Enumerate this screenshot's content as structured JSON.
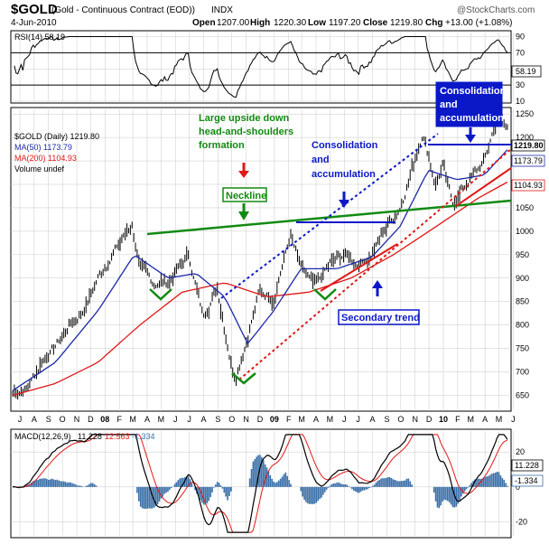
{
  "header": {
    "symbol": "$GOLD",
    "description": "(Gold - Continuous Contract (EOD))",
    "exchange": "INDX",
    "watermark": "@StockCharts.com",
    "date": "4-Jun-2010",
    "open_label": "Open",
    "open_value": "1207.00",
    "high_label": "High",
    "high_value": "1220.30",
    "low_label": "Low",
    "low_value": "1197.20",
    "close_label": "Close",
    "close_value": "1219.80",
    "chg_label": "Chg",
    "chg_value": "+13.00 (+1.08%)"
  },
  "colors": {
    "price_bars": "#000000",
    "ma50": "#1c2aa8",
    "ma200": "#e01818",
    "rsi": "#000000",
    "macd": "#000000",
    "macd_signal": "#e01818",
    "histogram": "#3a6fa8",
    "annotation_green": "#128a12",
    "annotation_blue": "#0a18c8",
    "trend_red": "#e01818",
    "grid": "#c8c8c8"
  },
  "chart_data": [
    {
      "type": "line",
      "panel": "rsi",
      "legend_label": "RSI(14) 58.19",
      "current_value_label": "58.19",
      "ylim": [
        10,
        95
      ],
      "y_ticks": [
        "90",
        "70",
        "50",
        "30",
        "10"
      ],
      "reference_lines": [
        70,
        30
      ],
      "grid": true
    },
    {
      "type": "line",
      "panel": "price",
      "legend": {
        "price": "$GOLD (Daily) 1219.80",
        "ma50": "MA(50) 1173.79",
        "ma200": "MA(200) 1104.93",
        "volume": "Volume undef"
      },
      "last_value_labels": [
        "1219.80",
        "1173.79",
        "1104.93"
      ],
      "ylim": [
        620,
        1260
      ],
      "y_ticks": [
        "1250",
        "1200",
        "1150",
        "1100",
        "1050",
        "1000",
        "950",
        "900",
        "850",
        "800",
        "750",
        "700",
        "650"
      ],
      "x_tick_labels": [
        "J",
        "A",
        "S",
        "O",
        "N",
        "D",
        "08",
        "F",
        "M",
        "A",
        "M",
        "J",
        "J",
        "A",
        "S",
        "O",
        "N",
        "D",
        "09",
        "F",
        "M",
        "A",
        "M",
        "J",
        "J",
        "A",
        "S",
        "O",
        "N",
        "D",
        "10",
        "F",
        "M",
        "A",
        "M",
        "J"
      ],
      "x_start": "2007-07",
      "x_end": "2010-06",
      "grid": true,
      "series_shape": [
        [
          "2007-07-01",
          655
        ],
        [
          "2007-08-01",
          665
        ],
        [
          "2007-09-01",
          720
        ],
        [
          "2007-10-01",
          755
        ],
        [
          "2007-11-01",
          800
        ],
        [
          "2007-12-01",
          830
        ],
        [
          "2008-01-01",
          900
        ],
        [
          "2008-02-01",
          950
        ],
        [
          "2008-03-15",
          1015
        ],
        [
          "2008-04-01",
          920
        ],
        [
          "2008-05-01",
          890
        ],
        [
          "2008-06-01",
          890
        ],
        [
          "2008-07-15",
          950
        ],
        [
          "2008-08-15",
          820
        ],
        [
          "2008-09-15",
          880
        ],
        [
          "2008-10-15",
          720
        ],
        [
          "2008-10-24",
          690
        ],
        [
          "2008-11-15",
          760
        ],
        [
          "2008-12-15",
          870
        ],
        [
          "2009-01-15",
          860
        ],
        [
          "2009-02-20",
          990
        ],
        [
          "2009-03-15",
          920
        ],
        [
          "2009-04-15",
          880
        ],
        [
          "2009-05-15",
          930
        ],
        [
          "2009-06-15",
          950
        ],
        [
          "2009-07-15",
          930
        ],
        [
          "2009-08-15",
          950
        ],
        [
          "2009-09-15",
          1010
        ],
        [
          "2009-10-15",
          1050
        ],
        [
          "2009-11-15",
          1150
        ],
        [
          "2009-12-03",
          1212
        ],
        [
          "2009-12-31",
          1100
        ],
        [
          "2010-01-15",
          1140
        ],
        [
          "2010-02-05",
          1060
        ],
        [
          "2010-03-15",
          1110
        ],
        [
          "2010-04-15",
          1150
        ],
        [
          "2010-05-12",
          1240
        ],
        [
          "2010-06-04",
          1219.8
        ]
      ],
      "ma50_shape": [
        [
          "2007-07-01",
          660
        ],
        [
          "2007-10-01",
          720
        ],
        [
          "2008-01-01",
          830
        ],
        [
          "2008-03-20",
          950
        ],
        [
          "2008-06-01",
          900
        ],
        [
          "2008-08-01",
          910
        ],
        [
          "2008-10-01",
          860
        ],
        [
          "2008-11-20",
          760
        ],
        [
          "2009-01-15",
          830
        ],
        [
          "2009-03-15",
          920
        ],
        [
          "2009-06-01",
          920
        ],
        [
          "2009-08-15",
          945
        ],
        [
          "2009-10-15",
          1010
        ],
        [
          "2009-12-15",
          1130
        ],
        [
          "2010-02-15",
          1110
        ],
        [
          "2010-04-15",
          1120
        ],
        [
          "2010-06-04",
          1173.79
        ]
      ],
      "ma200_shape": [
        [
          "2007-07-01",
          650
        ],
        [
          "2007-10-01",
          675
        ],
        [
          "2008-01-01",
          720
        ],
        [
          "2008-04-01",
          800
        ],
        [
          "2008-07-01",
          870
        ],
        [
          "2008-10-01",
          890
        ],
        [
          "2009-01-01",
          860
        ],
        [
          "2009-04-01",
          870
        ],
        [
          "2009-07-01",
          900
        ],
        [
          "2009-10-01",
          950
        ],
        [
          "2010-01-01",
          1010
        ],
        [
          "2010-04-01",
          1070
        ],
        [
          "2010-06-04",
          1104.93
        ]
      ],
      "annotations": [
        {
          "text": "Large upside down",
          "color": "green"
        },
        {
          "text": "head-and-shoulders",
          "color": "green"
        },
        {
          "text": "formation",
          "color": "green"
        },
        {
          "text": "Neckline",
          "color": "green"
        },
        {
          "text": "Consolidation",
          "color": "blue"
        },
        {
          "text": "and",
          "color": "blue"
        },
        {
          "text": "accumulation",
          "color": "blue"
        },
        {
          "text": "Secondary trend",
          "color": "blue"
        },
        {
          "text": "Consolidation",
          "color": "blue-box"
        },
        {
          "text": "and",
          "color": "blue-box"
        },
        {
          "text": "accumulation",
          "color": "blue-box"
        }
      ]
    },
    {
      "type": "line",
      "panel": "macd",
      "legend": {
        "name": "MACD(12,26,9)",
        "macd_value": "11.228",
        "signal_value": "12.563",
        "histogram_value": "-1.334"
      },
      "last_value_labels": [
        "11.228",
        "-1.334"
      ],
      "ylim": [
        -28,
        32
      ],
      "y_ticks": [
        "20",
        "0",
        "-20"
      ],
      "grid": true
    }
  ]
}
